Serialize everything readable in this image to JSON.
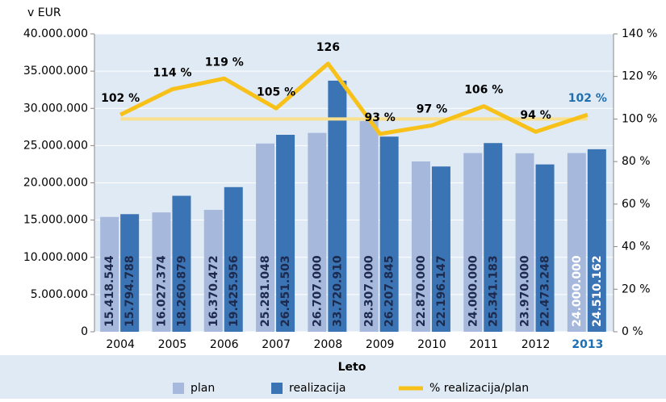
{
  "chart_data": {
    "type": "bar-line",
    "y_label": "v EUR",
    "x_label": "Leto",
    "categories": [
      "2004",
      "2005",
      "2006",
      "2007",
      "2008",
      "2009",
      "2010",
      "2011",
      "2012",
      "2013"
    ],
    "highlight_index": 9,
    "highlight_color": "#1f6fb0",
    "series": [
      {
        "name": "plan",
        "color": "#a6b8dc",
        "values": [
          15418544,
          16027374,
          16370472,
          25281048,
          26707000,
          28307000,
          22870000,
          24000000,
          23970000,
          24000000
        ],
        "value_labels": [
          "15.418.544",
          "16.027.374",
          "16.370.472",
          "25.281.048",
          "26.707.000",
          "28.307.000",
          "22.870.000",
          "24.000.000",
          "23.970.000",
          "24.000.000"
        ]
      },
      {
        "name": "realizacija",
        "color": "#3a74b4",
        "values": [
          15794788,
          18260879,
          19425956,
          26451503,
          33720910,
          26207845,
          22196147,
          25341183,
          22473248,
          24510162
        ],
        "value_labels": [
          "15.794.788",
          "18.260.879",
          "19.425.956",
          "26.451.503",
          "33.720.910",
          "26.207.845",
          "22.196.147",
          "25.341.183",
          "22.473.248",
          "24.510.162"
        ]
      },
      {
        "name": "% realizacija/plan",
        "color": "#f7c11a",
        "axis": "y2",
        "values": [
          102,
          114,
          119,
          105,
          126,
          93,
          97,
          106,
          94,
          102
        ],
        "value_labels": [
          "102 %",
          "114 %",
          "119 %",
          "105 %",
          "126",
          "93 %",
          "97 %",
          "106 %",
          "94 %",
          "102 %"
        ]
      }
    ],
    "reference_line": {
      "value": 100,
      "axis": "y2",
      "color": "#f9e08e"
    },
    "ylim": [
      0,
      40000000
    ],
    "yticks": [
      0,
      {
        "value": 5000000,
        "label": "5.000.000"
      },
      {
        "value": 10000000,
        "label": "10.000.000"
      },
      {
        "value": 15000000,
        "label": "15.000.000"
      },
      {
        "value": 20000000,
        "label": "20.000.000"
      },
      {
        "value": 25000000,
        "label": "25.000.000"
      },
      {
        "value": 30000000,
        "label": "30.000.000"
      },
      {
        "value": 35000000,
        "label": "35.000.000"
      },
      {
        "value": 40000000,
        "label": "40.000.000"
      }
    ],
    "y2lim": [
      0,
      140
    ],
    "y2ticks": [
      {
        "value": 0,
        "label": "0 %"
      },
      {
        "value": 20,
        "label": "20 %"
      },
      {
        "value": 40,
        "label": "40 %"
      },
      {
        "value": 60,
        "label": "60 %"
      },
      {
        "value": 80,
        "label": "80 %"
      },
      {
        "value": 100,
        "label": "100 %"
      },
      {
        "value": 120,
        "label": "120 %"
      },
      {
        "value": 140,
        "label": "140 %"
      }
    ],
    "grid": true
  }
}
